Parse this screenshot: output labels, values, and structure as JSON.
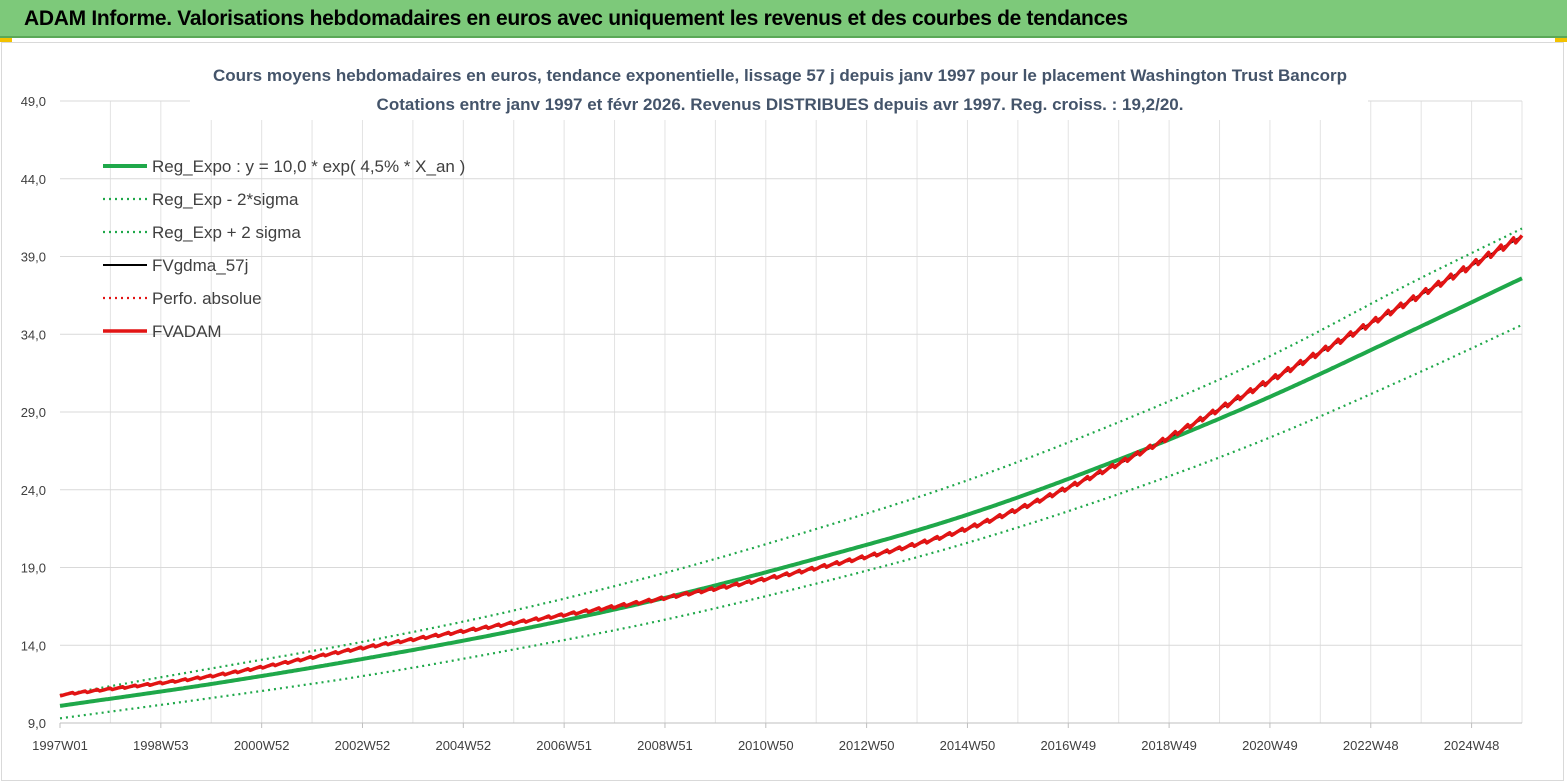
{
  "banner": {
    "title": "ADAM Informe. Valorisations hebdomadaires en euros avec uniquement les revenus et des courbes de tendances"
  },
  "chart_data": {
    "type": "line",
    "title_line1": "Cours moyens hebdomadaires en euros, tendance exponentielle, lissage 57 j depuis janv 1997  pour le placement Washington Trust Bancorp",
    "title_line2": "Cotations entre janv 1997  et  févr  2026. Revenus DISTRIBUES  depuis avr 1997. Reg. croiss. : 19,2/20.",
    "x_tick_labels": [
      "1997W01",
      "1998W53",
      "2000W52",
      "2002W52",
      "2004W52",
      "2006W51",
      "2008W51",
      "2010W50",
      "2012W50",
      "2014W50",
      "2016W49",
      "2018W49",
      "2020W49",
      "2022W48",
      "2024W48"
    ],
    "y_tick_labels": [
      "9,0",
      "14,0",
      "19,0",
      "24,0",
      "29,0",
      "34,0",
      "39,0",
      "44,0",
      "49,0"
    ],
    "ylim": [
      9,
      49
    ],
    "x_range_years": [
      1997.0,
      2026.15
    ],
    "grid": true,
    "legend_position": "top-left",
    "series": [
      {
        "name": "Reg_Expo : y = 10,0 * exp( 4,5% *  X_an )",
        "color": "#1fa84a",
        "style": "solid-thick",
        "x": [
          1997,
          2000,
          2003,
          2006,
          2009,
          2012,
          2015,
          2018,
          2021,
          2024,
          2026.15
        ],
        "y": [
          10.1,
          11.5,
          13.1,
          14.9,
          17.0,
          19.5,
          22.3,
          25.8,
          29.8,
          34.3,
          37.6
        ]
      },
      {
        "name": "Reg_Exp - 2*sigma",
        "color": "#1fa84a",
        "style": "dotted",
        "x": [
          1997,
          2000,
          2003,
          2006,
          2009,
          2012,
          2015,
          2018,
          2021,
          2024,
          2026.15
        ],
        "y": [
          9.3,
          10.6,
          12.0,
          13.7,
          15.6,
          17.9,
          20.5,
          23.6,
          27.2,
          31.4,
          34.6
        ]
      },
      {
        "name": "Reg_Exp + 2 sigma",
        "color": "#1fa84a",
        "style": "dotted",
        "x": [
          1997,
          2000,
          2003,
          2006,
          2009,
          2012,
          2015,
          2018,
          2021,
          2024,
          2026.15
        ],
        "y": [
          10.8,
          12.5,
          14.2,
          16.2,
          18.6,
          21.4,
          24.5,
          28.2,
          32.4,
          37.4,
          40.8
        ]
      },
      {
        "name": "FVgdma_57j",
        "color": "#000000",
        "style": "solid",
        "x": [
          1997,
          2000,
          2003,
          2006,
          2009,
          2012,
          2015,
          2018,
          2021,
          2024,
          2026.15
        ],
        "y": [
          10.8,
          12.0,
          13.8,
          15.4,
          17.0,
          18.9,
          21.4,
          25.5,
          30.8,
          36.3,
          40.3
        ]
      },
      {
        "name": "Perfo. absolue",
        "color": "#e21414",
        "style": "dotted",
        "x": [
          1997,
          2000,
          2003,
          2006,
          2009,
          2012,
          2015,
          2018,
          2021,
          2024,
          2026.15
        ],
        "y": [
          10.8,
          12.0,
          13.8,
          15.4,
          17.0,
          18.9,
          21.4,
          25.5,
          30.8,
          36.3,
          40.3
        ]
      },
      {
        "name": "FVADAM",
        "color": "#e21414",
        "style": "solid-thick-stepped",
        "x": [
          1997,
          2000,
          2003,
          2006,
          2009,
          2012,
          2015,
          2018,
          2021,
          2024,
          2026.15
        ],
        "y": [
          10.8,
          12.0,
          13.8,
          15.4,
          17.0,
          18.9,
          21.4,
          25.5,
          30.8,
          36.3,
          40.3
        ]
      }
    ]
  }
}
